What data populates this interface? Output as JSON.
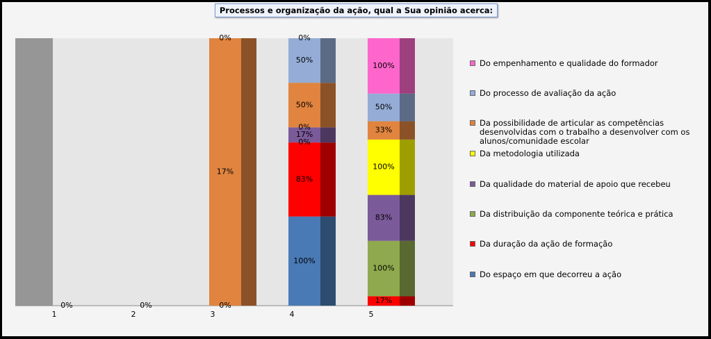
{
  "chart_data": {
    "type": "bar",
    "stacked": true,
    "title": "Processos e organização da ação, qual a Sua opinião acerca:",
    "categories": [
      "1",
      "2",
      "3",
      "4",
      "5"
    ],
    "series": [
      {
        "name": "Do espaço em que decorreu a ação",
        "color": "#4a7ab5",
        "values": [
          0,
          0,
          0,
          100,
          0
        ],
        "value_labels": [
          "0%",
          "0%",
          "0%",
          "100%",
          null
        ]
      },
      {
        "name": "Da duração da ação de formação",
        "color": "#ff0000",
        "values": [
          0,
          0,
          0,
          83,
          17
        ],
        "value_labels": [
          null,
          null,
          null,
          "83%",
          "17%"
        ]
      },
      {
        "name": "Da distribuição da componente teórica e prática",
        "color": "#8faa4e",
        "values": [
          0,
          0,
          0,
          0,
          100
        ],
        "value_labels": [
          null,
          null,
          null,
          "0%",
          "100%"
        ]
      },
      {
        "name": "Da qualidade do material de apoio que recebeu",
        "color": "#7b5a9a",
        "values": [
          0,
          0,
          0,
          17,
          83
        ],
        "value_labels": [
          null,
          null,
          null,
          "17%",
          "83%"
        ]
      },
      {
        "name": "Da metodologia utilizada",
        "color": "#ffff00",
        "values": [
          0,
          0,
          0,
          0,
          100
        ],
        "value_labels": [
          null,
          null,
          null,
          "0%",
          "100%"
        ]
      },
      {
        "name": "Da possibilidade de articular as competências desenvolvidas com o trabalho a desenvolver com os alunos/comunidade escolar",
        "color": "#e0843f",
        "values": [
          0,
          0,
          17,
          50,
          33
        ],
        "value_labels": [
          null,
          null,
          "17%",
          "50%",
          "33%"
        ]
      },
      {
        "name": "Do processo de avaliação da ação",
        "color": "#95add6",
        "values": [
          0,
          0,
          0,
          50,
          50
        ],
        "value_labels": [
          null,
          null,
          null,
          "50%",
          "50%"
        ]
      },
      {
        "name": "Do empenhamento e qualidade do formador",
        "color": "#ff66cc",
        "values": [
          0,
          0,
          0,
          0,
          100
        ],
        "value_labels": [
          null,
          null,
          "0%",
          "0%",
          "100%"
        ]
      }
    ]
  }
}
